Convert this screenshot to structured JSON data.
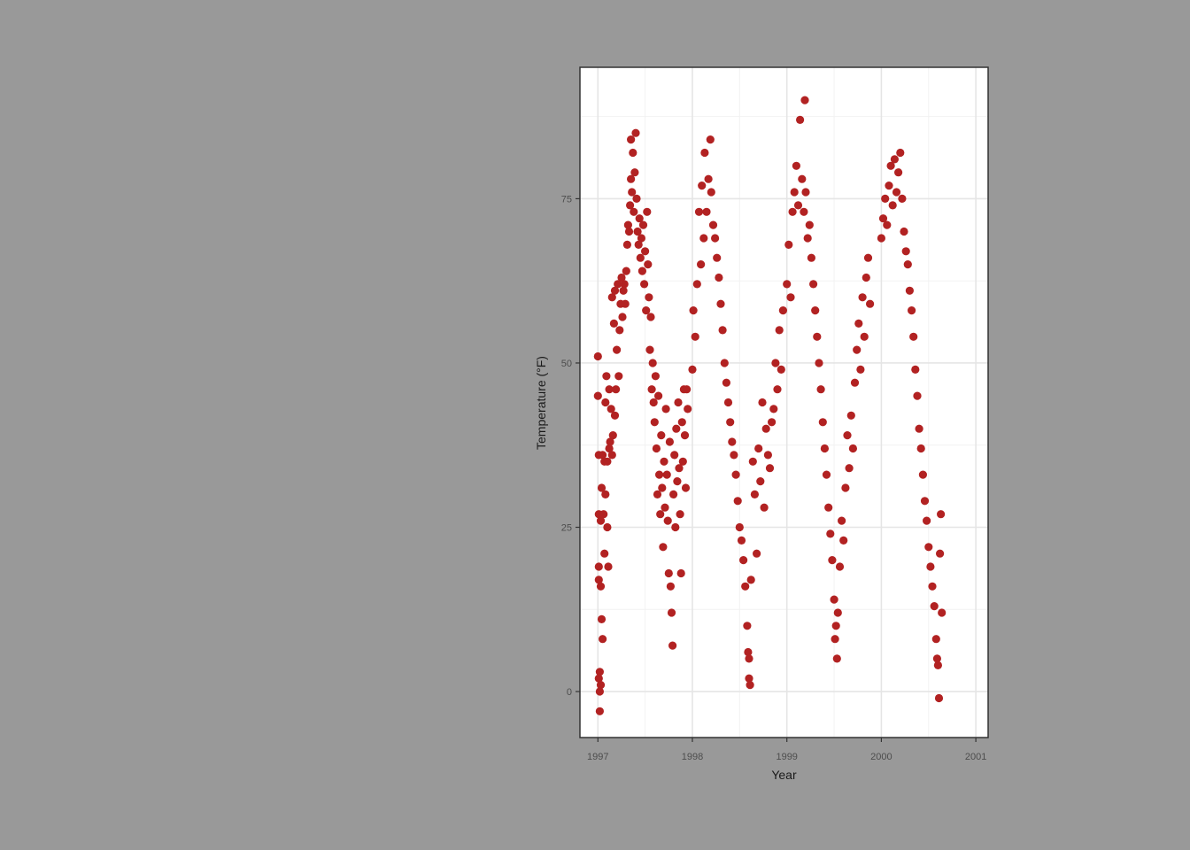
{
  "colors": {
    "background": "#999999",
    "panel": "#ffffff",
    "grid_major": "#e5e5e5",
    "grid_minor": "#f2f2f2",
    "border": "#333333",
    "point": "#b22222"
  },
  "chart_data": {
    "type": "scatter",
    "xlabel": "Year",
    "ylabel": "Temperature (°F)",
    "xlim": [
      1996.81,
      1997.0,
      2001.13
    ],
    "ylim": [
      -7,
      95
    ],
    "xticks": [
      1997,
      1998,
      1999,
      2000,
      2001
    ],
    "xtick_labels": [
      "1997",
      "1998",
      "1999",
      "2000",
      "2001"
    ],
    "yticks": [
      0,
      25,
      50,
      75
    ],
    "ytick_labels": [
      "0",
      "25",
      "50",
      "75"
    ],
    "grid": true,
    "legend": "none",
    "series": [
      {
        "color": "#b22222",
        "points": [
          [
            1997.0,
            51
          ],
          [
            1997.0,
            45
          ],
          [
            1997.01,
            36
          ],
          [
            1997.01,
            27
          ],
          [
            1997.01,
            19
          ],
          [
            1997.01,
            17
          ],
          [
            1997.01,
            2
          ],
          [
            1997.02,
            3
          ],
          [
            1997.02,
            0
          ],
          [
            1997.02,
            -3
          ],
          [
            1997.03,
            1
          ],
          [
            1997.03,
            16
          ],
          [
            1997.03,
            26
          ],
          [
            1997.04,
            31
          ],
          [
            1997.04,
            11
          ],
          [
            1997.05,
            8
          ],
          [
            1997.05,
            36
          ],
          [
            1997.06,
            27
          ],
          [
            1997.07,
            21
          ],
          [
            1997.07,
            35
          ],
          [
            1997.08,
            44
          ],
          [
            1997.08,
            30
          ],
          [
            1997.09,
            48
          ],
          [
            1997.1,
            25
          ],
          [
            1997.1,
            35
          ],
          [
            1997.11,
            19
          ],
          [
            1997.12,
            37
          ],
          [
            1997.12,
            46
          ],
          [
            1997.13,
            38
          ],
          [
            1997.14,
            43
          ],
          [
            1997.15,
            60
          ],
          [
            1997.15,
            36
          ],
          [
            1997.16,
            39
          ],
          [
            1997.17,
            56
          ],
          [
            1997.18,
            42
          ],
          [
            1997.18,
            61
          ],
          [
            1997.19,
            46
          ],
          [
            1997.2,
            52
          ],
          [
            1997.21,
            62
          ],
          [
            1997.22,
            48
          ],
          [
            1997.23,
            55
          ],
          [
            1997.24,
            59
          ],
          [
            1997.25,
            63
          ],
          [
            1997.26,
            57
          ],
          [
            1997.27,
            61
          ],
          [
            1997.28,
            62
          ],
          [
            1997.29,
            59
          ],
          [
            1997.3,
            64
          ],
          [
            1997.31,
            68
          ],
          [
            1997.32,
            71
          ],
          [
            1997.33,
            70
          ],
          [
            1997.34,
            74
          ],
          [
            1997.35,
            78
          ],
          [
            1997.35,
            84
          ],
          [
            1997.36,
            76
          ],
          [
            1997.37,
            82
          ],
          [
            1997.38,
            73
          ],
          [
            1997.39,
            79
          ],
          [
            1997.4,
            85
          ],
          [
            1997.41,
            75
          ],
          [
            1997.42,
            70
          ],
          [
            1997.43,
            68
          ],
          [
            1997.44,
            72
          ],
          [
            1997.45,
            66
          ],
          [
            1997.46,
            69
          ],
          [
            1997.47,
            64
          ],
          [
            1997.48,
            71
          ],
          [
            1997.49,
            62
          ],
          [
            1997.5,
            67
          ],
          [
            1997.51,
            58
          ],
          [
            1997.52,
            73
          ],
          [
            1997.53,
            65
          ],
          [
            1997.54,
            60
          ],
          [
            1997.55,
            52
          ],
          [
            1997.56,
            57
          ],
          [
            1997.57,
            46
          ],
          [
            1997.58,
            50
          ],
          [
            1997.59,
            44
          ],
          [
            1997.6,
            41
          ],
          [
            1997.61,
            48
          ],
          [
            1997.62,
            37
          ],
          [
            1997.63,
            30
          ],
          [
            1997.64,
            45
          ],
          [
            1997.65,
            33
          ],
          [
            1997.66,
            27
          ],
          [
            1997.67,
            39
          ],
          [
            1997.68,
            31
          ],
          [
            1997.69,
            22
          ],
          [
            1997.7,
            35
          ],
          [
            1997.71,
            28
          ],
          [
            1997.72,
            43
          ],
          [
            1997.73,
            33
          ],
          [
            1997.74,
            26
          ],
          [
            1997.75,
            18
          ],
          [
            1997.76,
            38
          ],
          [
            1997.77,
            16
          ],
          [
            1997.78,
            12
          ],
          [
            1997.79,
            7
          ],
          [
            1997.8,
            30
          ],
          [
            1997.81,
            36
          ],
          [
            1997.82,
            25
          ],
          [
            1997.83,
            40
          ],
          [
            1997.84,
            32
          ],
          [
            1997.85,
            44
          ],
          [
            1997.86,
            34
          ],
          [
            1997.87,
            27
          ],
          [
            1997.88,
            18
          ],
          [
            1997.89,
            41
          ],
          [
            1997.9,
            35
          ],
          [
            1997.91,
            46
          ],
          [
            1997.92,
            39
          ],
          [
            1997.93,
            31
          ],
          [
            1997.94,
            46
          ],
          [
            1997.95,
            43
          ],
          [
            1998.0,
            49
          ],
          [
            1998.01,
            58
          ],
          [
            1998.03,
            54
          ],
          [
            1998.05,
            62
          ],
          [
            1998.07,
            73
          ],
          [
            1998.09,
            65
          ],
          [
            1998.1,
            77
          ],
          [
            1998.12,
            69
          ],
          [
            1998.13,
            82
          ],
          [
            1998.15,
            73
          ],
          [
            1998.17,
            78
          ],
          [
            1998.19,
            84
          ],
          [
            1998.2,
            76
          ],
          [
            1998.22,
            71
          ],
          [
            1998.24,
            69
          ],
          [
            1998.26,
            66
          ],
          [
            1998.28,
            63
          ],
          [
            1998.3,
            59
          ],
          [
            1998.32,
            55
          ],
          [
            1998.34,
            50
          ],
          [
            1998.36,
            47
          ],
          [
            1998.38,
            44
          ],
          [
            1998.4,
            41
          ],
          [
            1998.42,
            38
          ],
          [
            1998.44,
            36
          ],
          [
            1998.46,
            33
          ],
          [
            1998.48,
            29
          ],
          [
            1998.5,
            25
          ],
          [
            1998.52,
            23
          ],
          [
            1998.54,
            20
          ],
          [
            1998.56,
            16
          ],
          [
            1998.58,
            10
          ],
          [
            1998.59,
            6
          ],
          [
            1998.6,
            2
          ],
          [
            1998.6,
            5
          ],
          [
            1998.61,
            1
          ],
          [
            1998.62,
            17
          ],
          [
            1998.64,
            35
          ],
          [
            1998.66,
            30
          ],
          [
            1998.68,
            21
          ],
          [
            1998.7,
            37
          ],
          [
            1998.72,
            32
          ],
          [
            1998.74,
            44
          ],
          [
            1998.76,
            28
          ],
          [
            1998.78,
            40
          ],
          [
            1998.8,
            36
          ],
          [
            1998.82,
            34
          ],
          [
            1998.84,
            41
          ],
          [
            1998.86,
            43
          ],
          [
            1998.88,
            50
          ],
          [
            1998.9,
            46
          ],
          [
            1998.92,
            55
          ],
          [
            1998.94,
            49
          ],
          [
            1998.96,
            58
          ],
          [
            1999.0,
            62
          ],
          [
            1999.02,
            68
          ],
          [
            1999.04,
            60
          ],
          [
            1999.06,
            73
          ],
          [
            1999.08,
            76
          ],
          [
            1999.1,
            80
          ],
          [
            1999.12,
            74
          ],
          [
            1999.14,
            87
          ],
          [
            1999.16,
            78
          ],
          [
            1999.18,
            73
          ],
          [
            1999.19,
            90
          ],
          [
            1999.2,
            76
          ],
          [
            1999.22,
            69
          ],
          [
            1999.24,
            71
          ],
          [
            1999.26,
            66
          ],
          [
            1999.28,
            62
          ],
          [
            1999.3,
            58
          ],
          [
            1999.32,
            54
          ],
          [
            1999.34,
            50
          ],
          [
            1999.36,
            46
          ],
          [
            1999.38,
            41
          ],
          [
            1999.4,
            37
          ],
          [
            1999.42,
            33
          ],
          [
            1999.44,
            28
          ],
          [
            1999.46,
            24
          ],
          [
            1999.48,
            20
          ],
          [
            1999.5,
            14
          ],
          [
            1999.51,
            8
          ],
          [
            1999.52,
            10
          ],
          [
            1999.53,
            5
          ],
          [
            1999.54,
            12
          ],
          [
            1999.56,
            19
          ],
          [
            1999.58,
            26
          ],
          [
            1999.6,
            23
          ],
          [
            1999.62,
            31
          ],
          [
            1999.64,
            39
          ],
          [
            1999.66,
            34
          ],
          [
            1999.68,
            42
          ],
          [
            1999.7,
            37
          ],
          [
            1999.72,
            47
          ],
          [
            1999.74,
            52
          ],
          [
            1999.76,
            56
          ],
          [
            1999.78,
            49
          ],
          [
            1999.8,
            60
          ],
          [
            1999.82,
            54
          ],
          [
            1999.84,
            63
          ],
          [
            1999.86,
            66
          ],
          [
            1999.88,
            59
          ],
          [
            2000.0,
            69
          ],
          [
            2000.02,
            72
          ],
          [
            2000.04,
            75
          ],
          [
            2000.06,
            71
          ],
          [
            2000.08,
            77
          ],
          [
            2000.1,
            80
          ],
          [
            2000.12,
            74
          ],
          [
            2000.14,
            81
          ],
          [
            2000.16,
            76
          ],
          [
            2000.18,
            79
          ],
          [
            2000.2,
            82
          ],
          [
            2000.22,
            75
          ],
          [
            2000.24,
            70
          ],
          [
            2000.26,
            67
          ],
          [
            2000.28,
            65
          ],
          [
            2000.3,
            61
          ],
          [
            2000.32,
            58
          ],
          [
            2000.34,
            54
          ],
          [
            2000.36,
            49
          ],
          [
            2000.38,
            45
          ],
          [
            2000.4,
            40
          ],
          [
            2000.42,
            37
          ],
          [
            2000.44,
            33
          ],
          [
            2000.46,
            29
          ],
          [
            2000.48,
            26
          ],
          [
            2000.5,
            22
          ],
          [
            2000.52,
            19
          ],
          [
            2000.54,
            16
          ],
          [
            2000.56,
            13
          ],
          [
            2000.58,
            8
          ],
          [
            2000.59,
            5
          ],
          [
            2000.6,
            4
          ],
          [
            2000.61,
            -1
          ],
          [
            2000.62,
            21
          ],
          [
            2000.63,
            27
          ],
          [
            2000.64,
            12
          ]
        ]
      }
    ]
  }
}
